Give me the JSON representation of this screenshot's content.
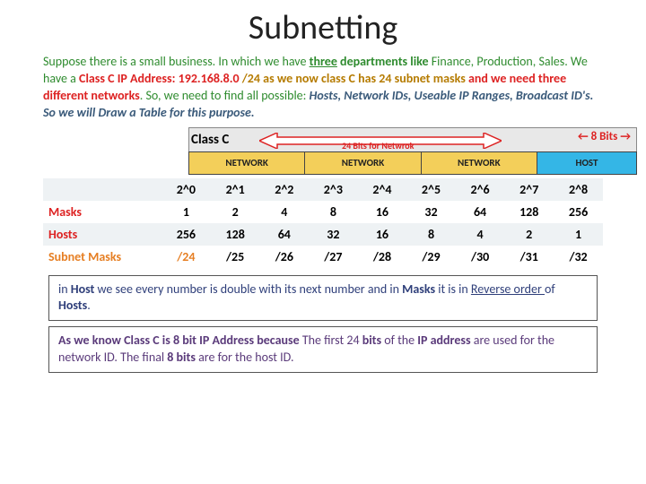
{
  "title": "Subnetting",
  "para": {
    "p1a": "Suppose there is a small business. In which we have ",
    "p1b": "three",
    "p1c": " departments like ",
    "p1d": "Finance, Production, Sales",
    "p1e": ". We have a ",
    "p1f": "Class C IP Address: 192.168.8.0 ",
    "p1g": "/24 as we now class C has 24 subnet masks",
    "p1h": "  and we need three different networks",
    "p1i": ". So, we need to find all possible:  ",
    "p1j": "Hosts, Network IDs, Useable IP Ranges, Broadcast ID's. ",
    "p1k": "So we will Draw a Table for this purpose."
  },
  "band": {
    "classc": "Class C",
    "bits24": "24 Bits for Netwrok",
    "bits8": "← 8 Bits →",
    "net": "NETWORK",
    "host": "HOST"
  },
  "table": {
    "headers": [
      "2^0",
      "2^1",
      "2^2",
      "2^3",
      "2^4",
      "2^5",
      "2^6",
      "2^7",
      "2^8"
    ],
    "rows": [
      {
        "label": "Masks",
        "labelClass": "masks-lbl",
        "cells": [
          "1",
          "2",
          "4",
          "8",
          "16",
          "32",
          "64",
          "128",
          "256"
        ]
      },
      {
        "label": "Hosts",
        "labelClass": "hosts-lbl",
        "cells": [
          "256",
          "128",
          "64",
          "32",
          "16",
          "8",
          "4",
          "2",
          "1"
        ]
      },
      {
        "label": "Subnet Masks",
        "labelClass": "subnet-lbl",
        "cells": [
          "/24",
          "/25",
          "/26",
          "/27",
          "/28",
          "/29",
          "/30",
          "/31",
          "/32"
        ],
        "firstCellOrange": true
      }
    ]
  },
  "note1": {
    "a": "in ",
    "b": "Host",
    "c": " we see every number is double with its next number and in ",
    "d": "Masks",
    "e": " it is in ",
    "f": "Reverse order ",
    "g": "of ",
    "h": "Hosts",
    "i": "."
  },
  "note2": {
    "a": "As we know Class C is 8 bit IP Address because ",
    "b": "The first 24 ",
    "c": "bits",
    "d": " of the ",
    "e": "IP address",
    "f": " are used for the network ID. The final ",
    "g": "8 bits",
    "h": " are for the host ID."
  },
  "colors": {
    "arrow_fill": "#d22",
    "arrow_stroke": "#8a1a1a"
  }
}
